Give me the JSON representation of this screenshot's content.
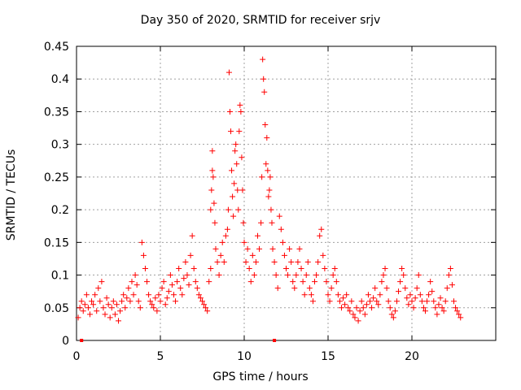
{
  "chart_data": {
    "type": "scatter",
    "title": "Day 350 of 2020, SRMTID for receiver srjv",
    "xlabel": "GPS time / hours",
    "ylabel": "SRMTID / TECUs",
    "xlim": [
      0,
      25
    ],
    "ylim": [
      0,
      0.45
    ],
    "x_ticks": [
      0,
      5,
      10,
      15,
      20
    ],
    "y_ticks": [
      0,
      0.05,
      0.1,
      0.15,
      0.2,
      0.25,
      0.3,
      0.35,
      0.4,
      0.45
    ],
    "x_tick_labels": [
      "0",
      "5",
      "10",
      "15",
      "20"
    ],
    "y_tick_labels": [
      "0",
      "0.05",
      "0.1",
      "0.15",
      "0.2",
      "0.25",
      "0.3",
      "0.35",
      "0.4",
      "0.45"
    ],
    "grid": true,
    "marker": "plus",
    "color": "#ff0000",
    "series": [
      {
        "name": "SRMTID",
        "points": [
          [
            0.1,
            0.035
          ],
          [
            0.2,
            0.05
          ],
          [
            0.3,
            0.06
          ],
          [
            0.4,
            0.045
          ],
          [
            0.5,
            0.055
          ],
          [
            0.6,
            0.07
          ],
          [
            0.7,
            0.05
          ],
          [
            0.8,
            0.04
          ],
          [
            0.9,
            0.06
          ],
          [
            1.0,
            0.055
          ],
          [
            1.1,
            0.07
          ],
          [
            1.2,
            0.045
          ],
          [
            1.3,
            0.08
          ],
          [
            1.4,
            0.06
          ],
          [
            1.5,
            0.09
          ],
          [
            1.6,
            0.05
          ],
          [
            1.7,
            0.04
          ],
          [
            1.8,
            0.065
          ],
          [
            1.9,
            0.055
          ],
          [
            2.0,
            0.035
          ],
          [
            2.1,
            0.05
          ],
          [
            2.2,
            0.06
          ],
          [
            2.3,
            0.04
          ],
          [
            2.4,
            0.055
          ],
          [
            2.5,
            0.03
          ],
          [
            2.6,
            0.045
          ],
          [
            2.7,
            0.06
          ],
          [
            2.8,
            0.07
          ],
          [
            2.9,
            0.05
          ],
          [
            3.0,
            0.065
          ],
          [
            3.1,
            0.08
          ],
          [
            3.2,
            0.06
          ],
          [
            3.3,
            0.09
          ],
          [
            3.4,
            0.07
          ],
          [
            3.5,
            0.1
          ],
          [
            3.6,
            0.085
          ],
          [
            3.7,
            0.06
          ],
          [
            3.8,
            0.05
          ],
          [
            3.9,
            0.15
          ],
          [
            4.0,
            0.13
          ],
          [
            4.1,
            0.11
          ],
          [
            4.2,
            0.09
          ],
          [
            4.3,
            0.07
          ],
          [
            4.4,
            0.06
          ],
          [
            4.5,
            0.055
          ],
          [
            4.6,
            0.05
          ],
          [
            4.7,
            0.065
          ],
          [
            4.8,
            0.045
          ],
          [
            4.9,
            0.07
          ],
          [
            5.0,
            0.06
          ],
          [
            5.1,
            0.08
          ],
          [
            5.2,
            0.09
          ],
          [
            5.3,
            0.055
          ],
          [
            5.4,
            0.065
          ],
          [
            5.5,
            0.075
          ],
          [
            5.6,
            0.1
          ],
          [
            5.7,
            0.085
          ],
          [
            5.8,
            0.07
          ],
          [
            5.9,
            0.06
          ],
          [
            6.0,
            0.09
          ],
          [
            6.1,
            0.11
          ],
          [
            6.2,
            0.08
          ],
          [
            6.3,
            0.07
          ],
          [
            6.4,
            0.095
          ],
          [
            6.5,
            0.12
          ],
          [
            6.6,
            0.1
          ],
          [
            6.7,
            0.085
          ],
          [
            6.8,
            0.13
          ],
          [
            6.9,
            0.16
          ],
          [
            7.0,
            0.11
          ],
          [
            7.1,
            0.09
          ],
          [
            7.2,
            0.08
          ],
          [
            7.3,
            0.07
          ],
          [
            7.4,
            0.065
          ],
          [
            7.5,
            0.06
          ],
          [
            7.6,
            0.055
          ],
          [
            7.7,
            0.05
          ],
          [
            7.8,
            0.045
          ],
          [
            7.9,
            0.09
          ],
          [
            8.0,
            0.11
          ],
          [
            8.0,
            0.2
          ],
          [
            8.05,
            0.23
          ],
          [
            8.1,
            0.26
          ],
          [
            8.1,
            0.29
          ],
          [
            8.15,
            0.25
          ],
          [
            8.2,
            0.21
          ],
          [
            8.25,
            0.18
          ],
          [
            8.3,
            0.14
          ],
          [
            8.4,
            0.12
          ],
          [
            8.5,
            0.1
          ],
          [
            8.6,
            0.13
          ],
          [
            8.7,
            0.15
          ],
          [
            8.8,
            0.12
          ],
          [
            8.9,
            0.16
          ],
          [
            9.0,
            0.17
          ],
          [
            9.05,
            0.2
          ],
          [
            9.1,
            0.41
          ],
          [
            9.15,
            0.35
          ],
          [
            9.2,
            0.32
          ],
          [
            9.25,
            0.26
          ],
          [
            9.3,
            0.22
          ],
          [
            9.35,
            0.19
          ],
          [
            9.4,
            0.24
          ],
          [
            9.45,
            0.29
          ],
          [
            9.5,
            0.3
          ],
          [
            9.55,
            0.27
          ],
          [
            9.6,
            0.23
          ],
          [
            9.65,
            0.2
          ],
          [
            9.7,
            0.32
          ],
          [
            9.75,
            0.36
          ],
          [
            9.8,
            0.35
          ],
          [
            9.85,
            0.28
          ],
          [
            9.9,
            0.23
          ],
          [
            9.95,
            0.18
          ],
          [
            10.0,
            0.15
          ],
          [
            10.1,
            0.12
          ],
          [
            10.2,
            0.14
          ],
          [
            10.3,
            0.11
          ],
          [
            10.4,
            0.09
          ],
          [
            10.5,
            0.13
          ],
          [
            10.6,
            0.1
          ],
          [
            10.7,
            0.12
          ],
          [
            10.8,
            0.16
          ],
          [
            10.9,
            0.14
          ],
          [
            11.0,
            0.18
          ],
          [
            11.05,
            0.25
          ],
          [
            11.1,
            0.43
          ],
          [
            11.15,
            0.4
          ],
          [
            11.2,
            0.38
          ],
          [
            11.25,
            0.33
          ],
          [
            11.3,
            0.27
          ],
          [
            11.35,
            0.31
          ],
          [
            11.4,
            0.26
          ],
          [
            11.45,
            0.22
          ],
          [
            11.5,
            0.23
          ],
          [
            11.55,
            0.25
          ],
          [
            11.6,
            0.2
          ],
          [
            11.65,
            0.18
          ],
          [
            11.7,
            0.14
          ],
          [
            11.8,
            0.12
          ],
          [
            11.9,
            0.1
          ],
          [
            12.0,
            0.08
          ],
          [
            12.1,
            0.19
          ],
          [
            12.2,
            0.17
          ],
          [
            12.3,
            0.15
          ],
          [
            12.4,
            0.13
          ],
          [
            12.5,
            0.11
          ],
          [
            12.6,
            0.1
          ],
          [
            12.7,
            0.14
          ],
          [
            12.8,
            0.12
          ],
          [
            12.9,
            0.09
          ],
          [
            13.0,
            0.08
          ],
          [
            13.1,
            0.1
          ],
          [
            13.2,
            0.12
          ],
          [
            13.3,
            0.14
          ],
          [
            13.4,
            0.11
          ],
          [
            13.5,
            0.09
          ],
          [
            13.6,
            0.07
          ],
          [
            13.7,
            0.1
          ],
          [
            13.8,
            0.12
          ],
          [
            13.9,
            0.08
          ],
          [
            14.0,
            0.07
          ],
          [
            14.1,
            0.06
          ],
          [
            14.2,
            0.09
          ],
          [
            14.3,
            0.1
          ],
          [
            14.4,
            0.12
          ],
          [
            14.5,
            0.16
          ],
          [
            14.6,
            0.17
          ],
          [
            14.7,
            0.13
          ],
          [
            14.8,
            0.11
          ],
          [
            14.9,
            0.09
          ],
          [
            15.0,
            0.07
          ],
          [
            15.1,
            0.06
          ],
          [
            15.2,
            0.08
          ],
          [
            15.3,
            0.1
          ],
          [
            15.4,
            0.11
          ],
          [
            15.5,
            0.09
          ],
          [
            15.6,
            0.07
          ],
          [
            15.7,
            0.06
          ],
          [
            15.8,
            0.05
          ],
          [
            15.9,
            0.065
          ],
          [
            16.0,
            0.055
          ],
          [
            16.1,
            0.07
          ],
          [
            16.2,
            0.05
          ],
          [
            16.3,
            0.045
          ],
          [
            16.4,
            0.06
          ],
          [
            16.5,
            0.04
          ],
          [
            16.6,
            0.035
          ],
          [
            16.7,
            0.05
          ],
          [
            16.8,
            0.03
          ],
          [
            16.9,
            0.045
          ],
          [
            17.0,
            0.06
          ],
          [
            17.1,
            0.05
          ],
          [
            17.2,
            0.04
          ],
          [
            17.3,
            0.055
          ],
          [
            17.4,
            0.07
          ],
          [
            17.5,
            0.06
          ],
          [
            17.6,
            0.05
          ],
          [
            17.7,
            0.065
          ],
          [
            17.8,
            0.08
          ],
          [
            17.9,
            0.06
          ],
          [
            18.0,
            0.055
          ],
          [
            18.1,
            0.07
          ],
          [
            18.2,
            0.09
          ],
          [
            18.3,
            0.1
          ],
          [
            18.4,
            0.11
          ],
          [
            18.5,
            0.08
          ],
          [
            18.6,
            0.06
          ],
          [
            18.7,
            0.05
          ],
          [
            18.8,
            0.04
          ],
          [
            18.9,
            0.035
          ],
          [
            19.0,
            0.045
          ],
          [
            19.1,
            0.06
          ],
          [
            19.2,
            0.075
          ],
          [
            19.3,
            0.09
          ],
          [
            19.4,
            0.11
          ],
          [
            19.5,
            0.1
          ],
          [
            19.6,
            0.08
          ],
          [
            19.7,
            0.065
          ],
          [
            19.8,
            0.055
          ],
          [
            19.9,
            0.07
          ],
          [
            20.0,
            0.06
          ],
          [
            20.1,
            0.05
          ],
          [
            20.2,
            0.065
          ],
          [
            20.3,
            0.08
          ],
          [
            20.4,
            0.1
          ],
          [
            20.5,
            0.07
          ],
          [
            20.6,
            0.06
          ],
          [
            20.7,
            0.05
          ],
          [
            20.8,
            0.045
          ],
          [
            20.9,
            0.06
          ],
          [
            21.0,
            0.07
          ],
          [
            21.1,
            0.09
          ],
          [
            21.2,
            0.075
          ],
          [
            21.3,
            0.06
          ],
          [
            21.4,
            0.05
          ],
          [
            21.5,
            0.04
          ],
          [
            21.6,
            0.055
          ],
          [
            21.7,
            0.065
          ],
          [
            21.8,
            0.05
          ],
          [
            21.9,
            0.045
          ],
          [
            22.0,
            0.06
          ],
          [
            22.1,
            0.08
          ],
          [
            22.2,
            0.1
          ],
          [
            22.3,
            0.11
          ],
          [
            22.4,
            0.085
          ],
          [
            22.5,
            0.06
          ],
          [
            22.6,
            0.05
          ],
          [
            22.7,
            0.045
          ],
          [
            22.8,
            0.04
          ],
          [
            22.9,
            0.035
          ]
        ]
      }
    ]
  }
}
